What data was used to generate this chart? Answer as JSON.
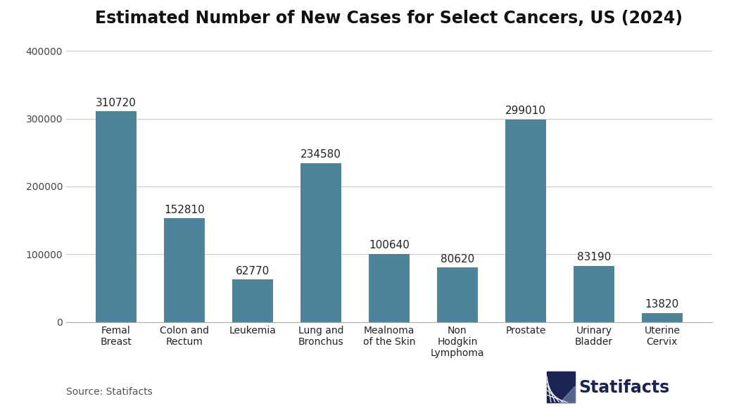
{
  "title": "Estimated Number of New Cases for Select Cancers, US (2024)",
  "categories": [
    "Femal\nBreast",
    "Colon and\nRectum",
    "Leukemia",
    "Lung and\nBronchus",
    "Mealnoma\nof the Skin",
    "Non\nHodgkin\nLymphoma",
    "Prostate",
    "Urinary\nBladder",
    "Uterine\nCervix"
  ],
  "values": [
    310720,
    152810,
    62770,
    234580,
    100640,
    80620,
    299010,
    83190,
    13820
  ],
  "bar_color": "#4d849a",
  "ylim": [
    0,
    420000
  ],
  "yticks": [
    0,
    100000,
    200000,
    300000,
    400000
  ],
  "ytick_labels": [
    "0",
    "100000",
    "200000",
    "300000",
    "400000"
  ],
  "source_text": "Source: Statifacts",
  "logo_text": "Statifacts",
  "logo_color": "#1a2351",
  "logo_light": "#8899bb",
  "background_color": "#ffffff",
  "title_fontsize": 17,
  "bar_label_fontsize": 11,
  "tick_label_fontsize": 10,
  "source_fontsize": 10
}
